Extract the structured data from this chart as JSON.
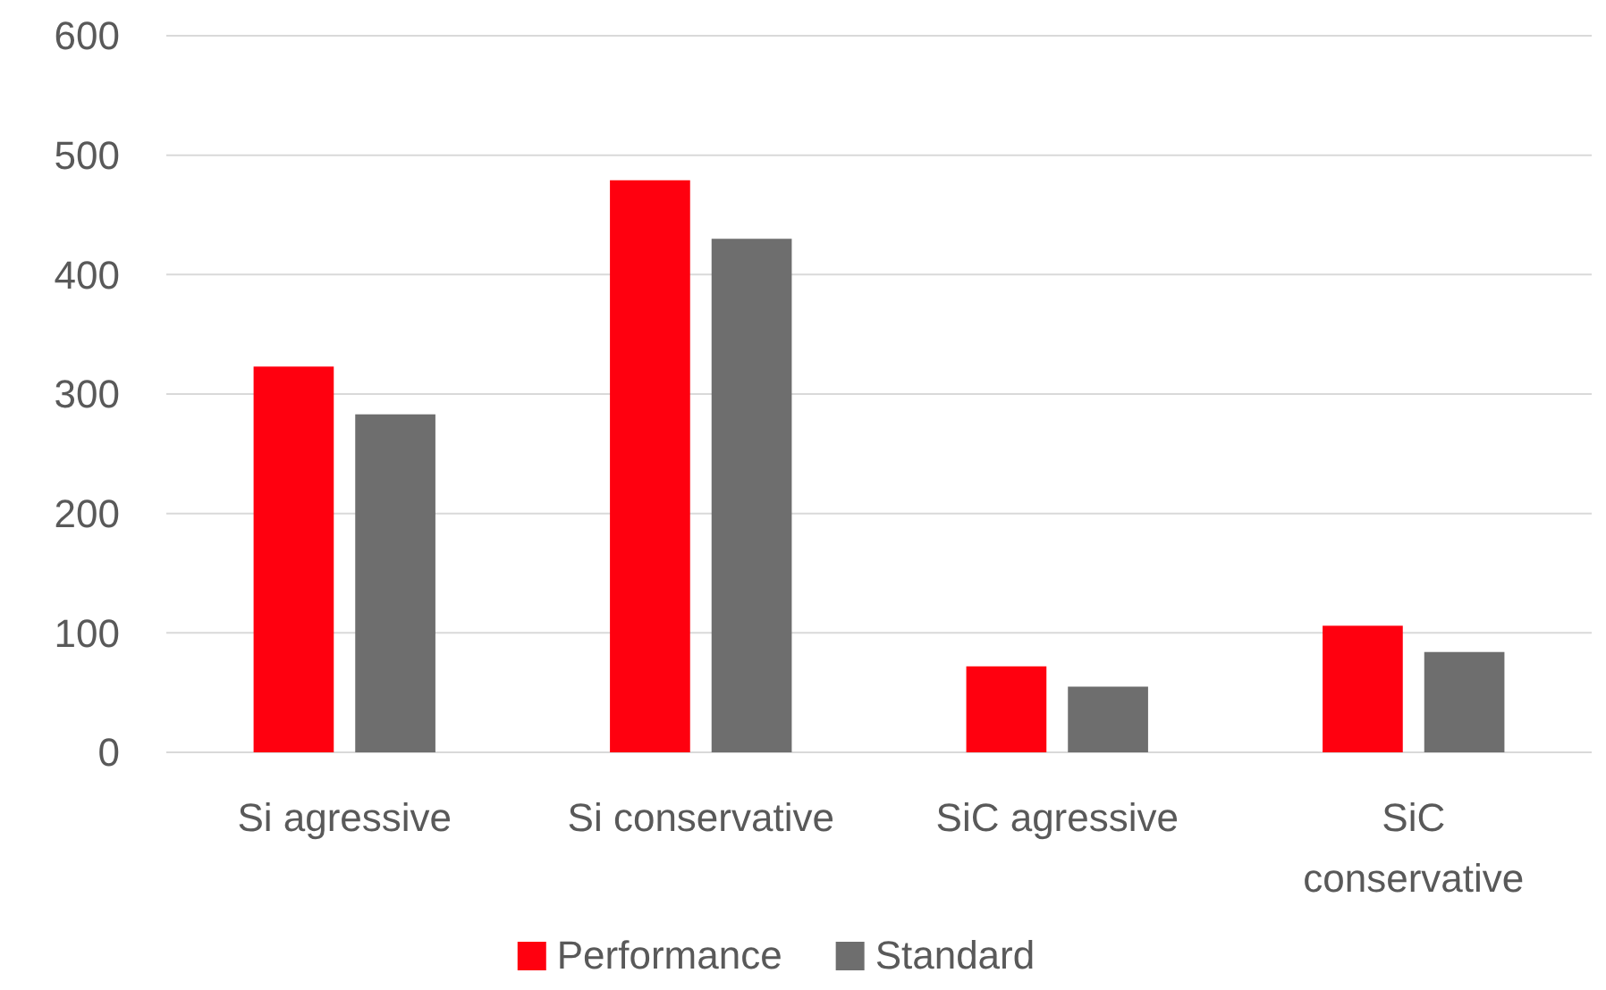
{
  "chart_data": {
    "type": "bar",
    "categories": [
      "Si agressive",
      "Si conservative",
      "SiC agressive",
      "SiC conservative"
    ],
    "series": [
      {
        "name": "Performance",
        "color": "#ff000f",
        "values": [
          323,
          479,
          72,
          106
        ]
      },
      {
        "name": "Standard",
        "color": "#6e6e6e",
        "values": [
          283,
          430,
          55,
          84
        ]
      }
    ],
    "ylim": [
      0,
      600
    ],
    "yticks": [
      0,
      100,
      200,
      300,
      400,
      500,
      600
    ],
    "grid": "y",
    "legend": "bottom"
  }
}
